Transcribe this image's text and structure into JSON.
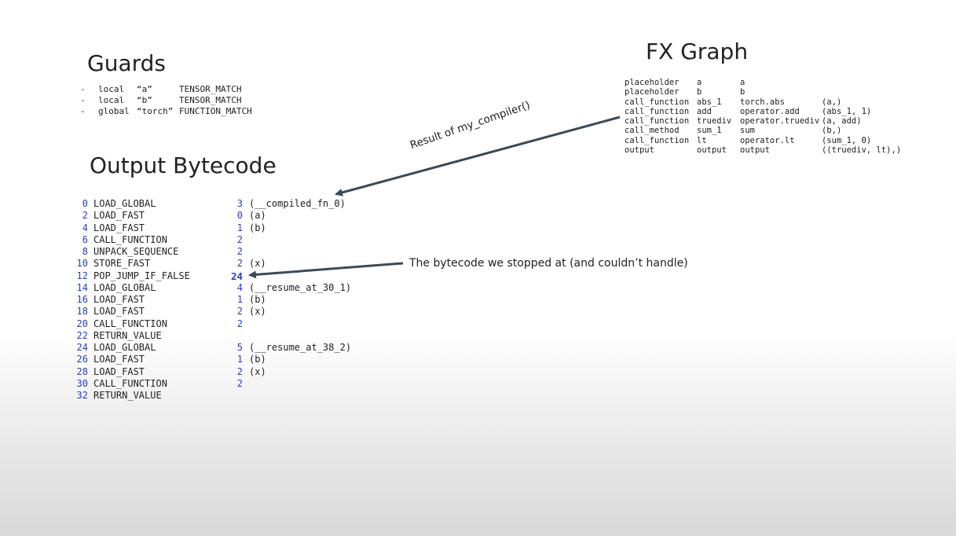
{
  "guards": {
    "title": "Guards",
    "rows": [
      {
        "dash": "-",
        "scope": "local",
        "name": "“a”",
        "type": "TENSOR_MATCH"
      },
      {
        "dash": "-",
        "scope": "local",
        "name": "“b”",
        "type": "TENSOR_MATCH"
      },
      {
        "dash": "-",
        "scope": "global",
        "name": "“torch”",
        "type": "FUNCTION_MATCH"
      }
    ]
  },
  "fx_graph": {
    "title": "FX Graph",
    "rows": [
      [
        "placeholder",
        "a",
        "a",
        ""
      ],
      [
        "placeholder",
        "b",
        "b",
        ""
      ],
      [
        "call_function",
        "abs_1",
        "torch.abs",
        "(a,)"
      ],
      [
        "call_function",
        "add",
        "operator.add",
        "(abs_1, 1)"
      ],
      [
        "call_function",
        "truediv",
        "operator.truediv",
        "(a, add)"
      ],
      [
        "call_method",
        "sum_1",
        "sum",
        "(b,)"
      ],
      [
        "call_function",
        "lt",
        "operator.lt",
        "(sum_1, 0)"
      ],
      [
        "output",
        "output",
        "output",
        "((truediv, lt),)"
      ]
    ]
  },
  "bytecode": {
    "title": "Output Bytecode",
    "rows": [
      {
        "offset": "0",
        "op": "LOAD_GLOBAL",
        "arg": "3",
        "ann": "(__compiled_fn_0)"
      },
      {
        "offset": "2",
        "op": "LOAD_FAST",
        "arg": "0",
        "ann": "(a)"
      },
      {
        "offset": "4",
        "op": "LOAD_FAST",
        "arg": "1",
        "ann": "(b)"
      },
      {
        "offset": "6",
        "op": "CALL_FUNCTION",
        "arg": "2",
        "ann": ""
      },
      {
        "offset": "8",
        "op": "UNPACK_SEQUENCE",
        "arg": "2",
        "ann": ""
      },
      {
        "offset": "10",
        "op": "STORE_FAST",
        "arg": "2",
        "ann": "(x)"
      },
      {
        "offset": "12",
        "op": "POP_JUMP_IF_FALSE",
        "arg": "24",
        "ann": ""
      },
      {
        "offset": "14",
        "op": "LOAD_GLOBAL",
        "arg": "4",
        "ann": "(__resume_at_30_1)"
      },
      {
        "offset": "16",
        "op": "LOAD_FAST",
        "arg": "1",
        "ann": "(b)"
      },
      {
        "offset": "18",
        "op": "LOAD_FAST",
        "arg": "2",
        "ann": "(x)"
      },
      {
        "offset": "20",
        "op": "CALL_FUNCTION",
        "arg": "2",
        "ann": ""
      },
      {
        "offset": "22",
        "op": "RETURN_VALUE",
        "arg": "",
        "ann": ""
      },
      {
        "offset": "24",
        "op": "LOAD_GLOBAL",
        "arg": "5",
        "ann": "(__resume_at_38_2)"
      },
      {
        "offset": "26",
        "op": "LOAD_FAST",
        "arg": "1",
        "ann": "(b)"
      },
      {
        "offset": "28",
        "op": "LOAD_FAST",
        "arg": "2",
        "ann": "(x)"
      },
      {
        "offset": "30",
        "op": "CALL_FUNCTION",
        "arg": "2",
        "ann": ""
      },
      {
        "offset": "32",
        "op": "RETURN_VALUE",
        "arg": "",
        "ann": ""
      }
    ]
  },
  "annotations": {
    "result": "Result of my_compiler()",
    "stopped": "The bytecode we stopped at (and couldn’t handle)"
  },
  "colors": {
    "arrow": "#3c4a57",
    "bytecode_number": "#2a3fb0"
  }
}
